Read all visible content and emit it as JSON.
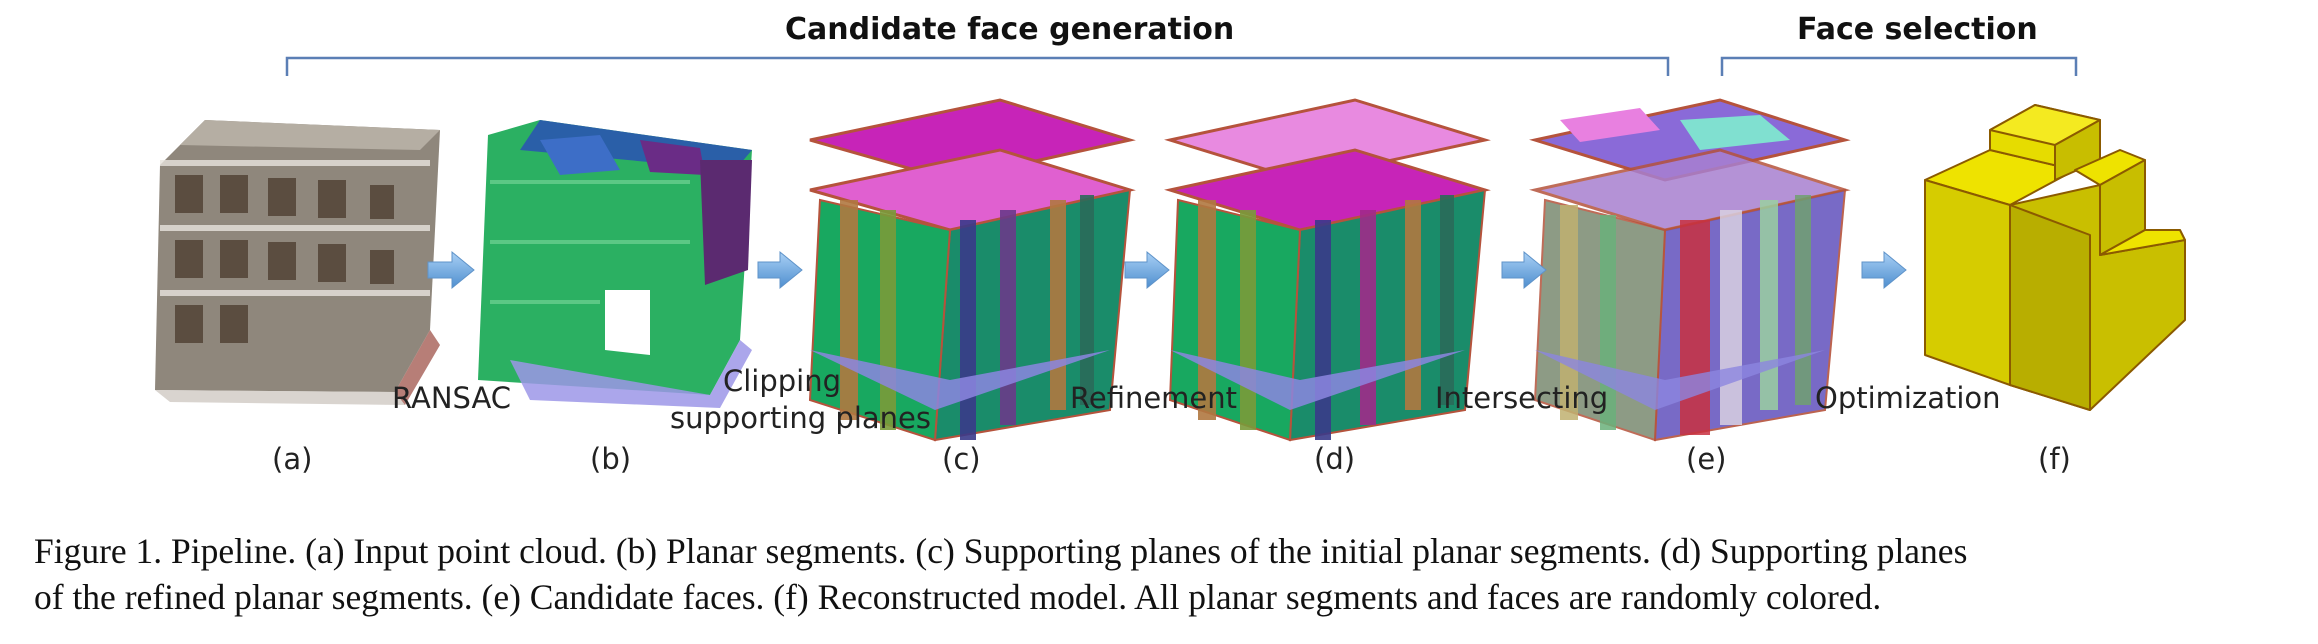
{
  "figure": {
    "stages": {
      "candidate_generation": "Candidate face generation",
      "face_selection": "Face selection"
    },
    "steps": {
      "ransac": "RANSAC",
      "clipping_line1": "Clipping",
      "clipping_line2": "supporting planes",
      "refinement": "Refinement",
      "intersecting": "Intersecting",
      "optimization": "Optimization"
    },
    "panel_labels": [
      "(a)",
      "(b)",
      "(c)",
      "(d)",
      "(e)",
      "(f)"
    ],
    "colors": {
      "bracket": "#5b7fb5",
      "arrow": "#6fa8dc",
      "model": "#e6dc00",
      "model_edge": "#8b5a00"
    }
  },
  "caption": {
    "line1": "Figure 1. Pipeline. (a) Input point cloud. (b) Planar segments. (c) Supporting planes of the initial planar segments. (d) Supporting planes",
    "line2": "of the refined planar segments. (e) Candidate faces. (f) Reconstructed model. All planar segments and faces are randomly colored."
  }
}
